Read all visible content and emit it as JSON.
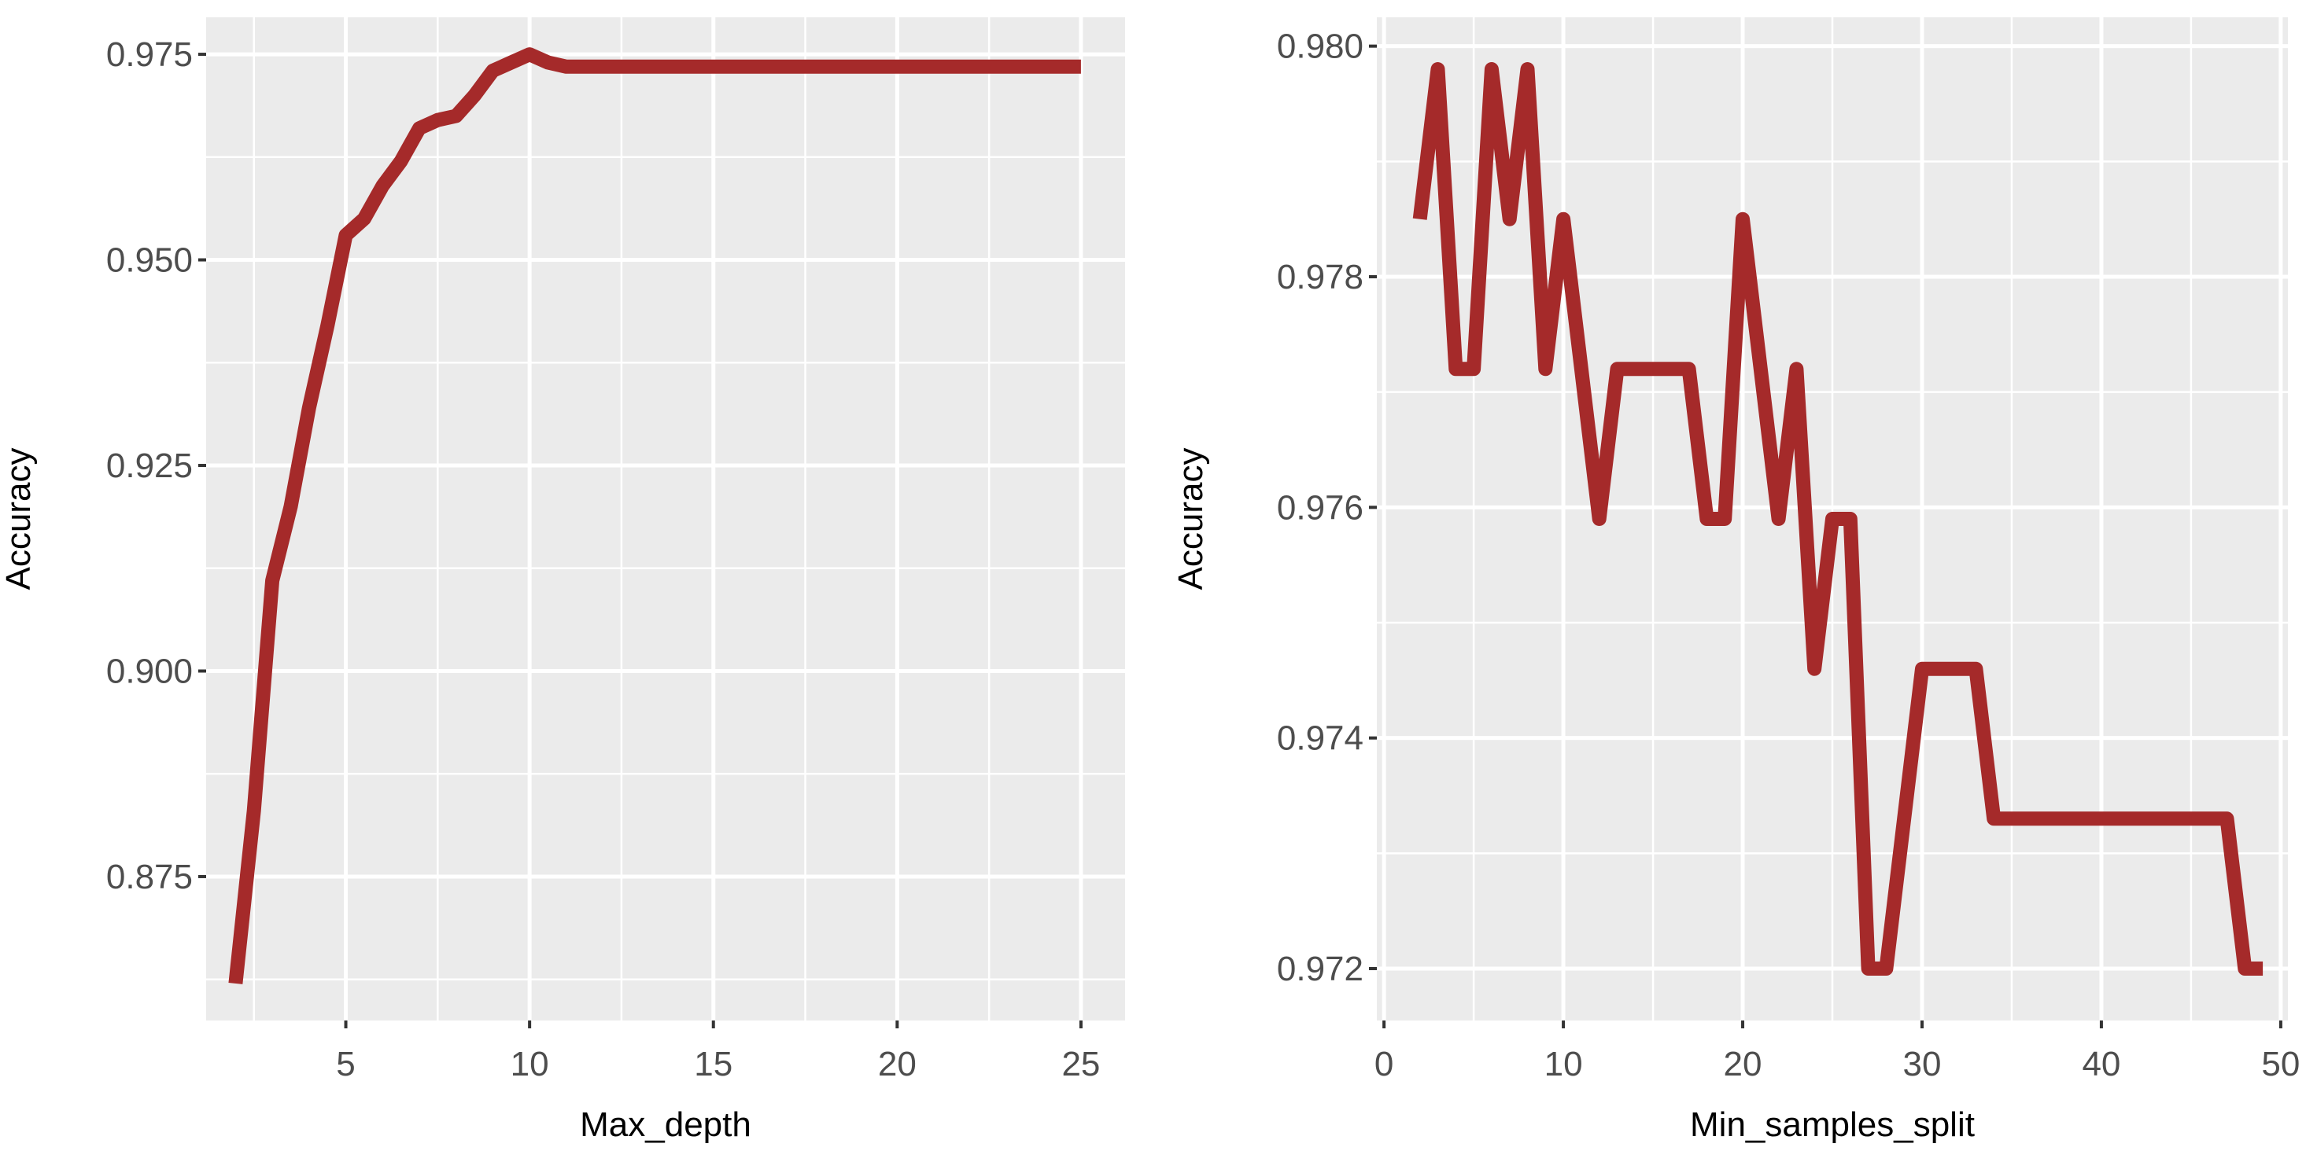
{
  "chart_data": [
    {
      "type": "line",
      "xlabel": "Max_depth",
      "ylabel": "Accuracy",
      "xlim": [
        1.2,
        26.2
      ],
      "ylim": [
        0.8575,
        0.9795
      ],
      "x_ticks": [
        5,
        10,
        15,
        20,
        25
      ],
      "x_tick_labels": [
        "5",
        "10",
        "15",
        "20",
        "25"
      ],
      "y_ticks": [
        0.875,
        0.9,
        0.925,
        0.95,
        0.975
      ],
      "y_tick_labels": [
        "0.875",
        "0.900",
        "0.925",
        "0.950",
        "0.975"
      ],
      "grid": true,
      "series": [
        {
          "color": "#A52A2A",
          "x": [
            2,
            2.5,
            3,
            3.5,
            4,
            4.5,
            5,
            5.5,
            6,
            6.5,
            7,
            7.5,
            8,
            8.5,
            9,
            9.5,
            10,
            10.5,
            11,
            12,
            13,
            14,
            15,
            16,
            17,
            18,
            19,
            20,
            21,
            22,
            23,
            24,
            25
          ],
          "y": [
            0.862,
            0.883,
            0.911,
            0.92,
            0.932,
            0.942,
            0.953,
            0.955,
            0.959,
            0.962,
            0.966,
            0.967,
            0.9675,
            0.97,
            0.973,
            0.974,
            0.975,
            0.974,
            0.9735,
            0.9735,
            0.9735,
            0.9735,
            0.9735,
            0.9735,
            0.9735,
            0.9735,
            0.9735,
            0.9735,
            0.9735,
            0.9735,
            0.9735,
            0.9735,
            0.9735
          ]
        }
      ]
    },
    {
      "type": "line",
      "xlabel": "Min_samples_split",
      "ylabel": "Accuracy",
      "xlim": [
        -0.4,
        50.4
      ],
      "ylim": [
        0.97155,
        0.98025
      ],
      "x_ticks": [
        0,
        10,
        20,
        30,
        40,
        50
      ],
      "x_tick_labels": [
        "0",
        "10",
        "20",
        "30",
        "40",
        "50"
      ],
      "y_ticks": [
        0.972,
        0.974,
        0.976,
        0.978,
        0.98
      ],
      "y_tick_labels": [
        "0.972",
        "0.974",
        "0.976",
        "0.978",
        "0.980"
      ],
      "grid": true,
      "series": [
        {
          "color": "#A52A2A",
          "x": [
            2,
            3,
            4,
            5,
            6,
            7,
            8,
            9,
            10,
            11,
            12,
            13,
            14,
            15,
            16,
            17,
            18,
            19,
            20,
            21,
            22,
            23,
            24,
            25,
            26,
            27,
            28,
            29,
            30,
            31,
            32,
            33,
            34,
            35,
            36,
            37,
            38,
            39,
            40,
            41,
            42,
            43,
            44,
            45,
            46,
            47,
            48,
            49
          ],
          "y": [
            0.9785,
            0.9798,
            0.9772,
            0.9772,
            0.9798,
            0.9785,
            0.9798,
            0.9772,
            0.9785,
            0.9772,
            0.9759,
            0.9772,
            0.9772,
            0.9772,
            0.9772,
            0.9772,
            0.9759,
            0.9759,
            0.9785,
            0.9772,
            0.9759,
            0.9772,
            0.9746,
            0.9759,
            0.9759,
            0.972,
            0.972,
            0.9733,
            0.9746,
            0.9746,
            0.9746,
            0.9746,
            0.9733,
            0.9733,
            0.9733,
            0.9733,
            0.9733,
            0.9733,
            0.9733,
            0.9733,
            0.9733,
            0.9733,
            0.9733,
            0.9733,
            0.9733,
            0.9733,
            0.972,
            0.972
          ]
        }
      ]
    }
  ]
}
